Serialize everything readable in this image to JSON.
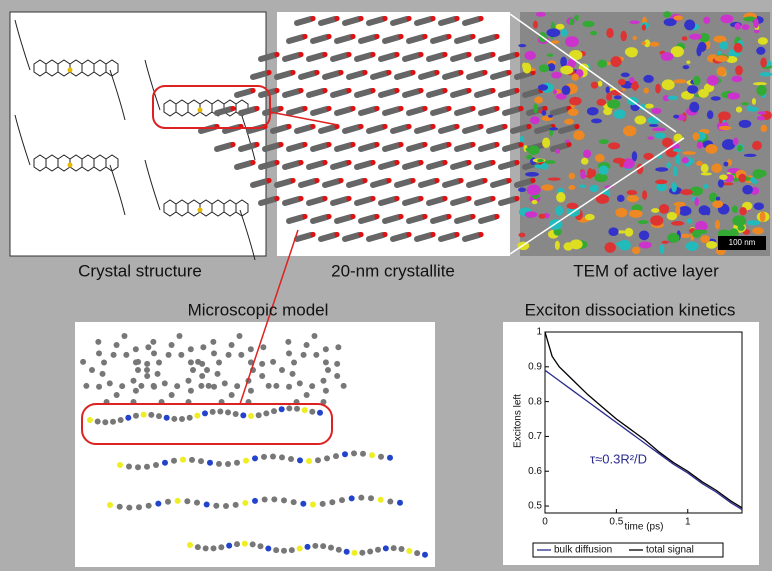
{
  "panels": {
    "crystal": "Crystal structure",
    "crystallite": "20-nm crystallite",
    "tem": "TEM of active layer",
    "scale_bar": "100 nm",
    "model": "Microscopic model"
  },
  "chart_data": {
    "type": "line",
    "title": "Exciton dissociation kinetics",
    "x_label": "time (ps)",
    "y_label": "Excitons left",
    "annotation": "τ≈0.3R²/D",
    "x": [
      0,
      0.05,
      0.1,
      0.2,
      0.3,
      0.4,
      0.5,
      0.6,
      0.7,
      0.8,
      0.9,
      1.0,
      1.1,
      1.2,
      1.3,
      1.38
    ],
    "series": [
      {
        "name": "bulk diffusion",
        "color": "#2b2b8f",
        "values": [
          0.89,
          0.875,
          0.86,
          0.83,
          0.8,
          0.77,
          0.74,
          0.71,
          0.68,
          0.65,
          0.62,
          0.595,
          0.565,
          0.54,
          0.51,
          0.49
        ]
      },
      {
        "name": "total signal",
        "color": "#000000",
        "values": [
          1.0,
          0.93,
          0.9,
          0.86,
          0.82,
          0.785,
          0.75,
          0.72,
          0.69,
          0.655,
          0.625,
          0.6,
          0.57,
          0.545,
          0.515,
          0.495
        ]
      }
    ],
    "xlim": [
      0,
      1.38
    ],
    "ylim": [
      0.48,
      1.0
    ],
    "xticks": [
      0,
      0.5,
      1
    ],
    "yticks": [
      0.5,
      0.6,
      0.7,
      0.8,
      0.9,
      1
    ],
    "legend": "bottom"
  }
}
